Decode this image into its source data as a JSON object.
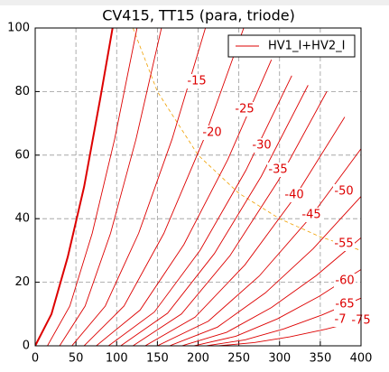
{
  "chart_data": {
    "type": "line",
    "title": "CV415,  TT15  (para, triode)",
    "legend": {
      "label": "HV1_I+HV2_I",
      "loc": "upper right",
      "color": "#dd0000"
    },
    "xlim": [
      0,
      400
    ],
    "ylim": [
      0,
      100
    ],
    "xticks": [
      0,
      50,
      100,
      150,
      200,
      250,
      300,
      350,
      400
    ],
    "yticks": [
      0,
      20,
      40,
      60,
      80,
      100
    ],
    "grid": true,
    "series": [
      {
        "color": "#dd0000",
        "bold": true,
        "x": [
          0,
          20,
          40,
          60,
          80,
          95
        ],
        "values": [
          0,
          10,
          28,
          50,
          78,
          100
        ]
      },
      {
        "color": "#dd0000",
        "x": [
          15,
          42.5,
          70,
          97.5,
          125
        ],
        "values": [
          0,
          12.5,
          35.4,
          65,
          100
        ]
      },
      {
        "color": "#dd0000",
        "x": [
          30,
          61.25,
          92.5,
          123.75,
          155
        ],
        "values": [
          0,
          12.5,
          35.4,
          65,
          100
        ]
      },
      {
        "color": "#dd0000",
        "label": "-15",
        "x": [
          45,
          86,
          127,
          168,
          209
        ],
        "values": [
          0,
          12.5,
          35.4,
          65,
          100
        ]
      },
      {
        "color": "#dd0000",
        "label": "-20",
        "x": [
          60,
          109,
          158,
          207,
          256
        ],
        "values": [
          0,
          12.5,
          35.4,
          65,
          100
        ]
      },
      {
        "color": "#dd0000",
        "label": "-25",
        "x": [
          75,
          128.75,
          182.5,
          236.25,
          290
        ],
        "values": [
          0,
          11.25,
          31.86,
          58.5,
          90
        ]
      },
      {
        "color": "#dd0000",
        "label": "-30",
        "x": [
          90,
          146.25,
          202.5,
          258.75,
          315
        ],
        "values": [
          0,
          10.63,
          30.09,
          55.25,
          85
        ]
      },
      {
        "color": "#dd0000",
        "label": "-35",
        "x": [
          105,
          162.5,
          220,
          277.5,
          335
        ],
        "values": [
          0,
          10.25,
          29.03,
          53.3,
          82
        ]
      },
      {
        "color": "#dd0000",
        "label": "-40",
        "x": [
          120,
          179.5,
          239,
          298.5,
          358
        ],
        "values": [
          0,
          10,
          28.32,
          52,
          80
        ]
      },
      {
        "color": "#dd0000",
        "label": "-45",
        "x": [
          135,
          196.25,
          257.5,
          318.75,
          380
        ],
        "values": [
          0,
          9,
          25.49,
          46.8,
          72
        ]
      },
      {
        "color": "#dd0000",
        "label": "-50",
        "x": [
          150,
          212.5,
          275,
          337.5,
          400
        ],
        "values": [
          0,
          7.75,
          21.95,
          40.3,
          62
        ]
      },
      {
        "color": "#dd0000",
        "label": "-55",
        "x": [
          165,
          223.75,
          282.5,
          341.25,
          400
        ],
        "values": [
          0,
          5.88,
          16.64,
          30.55,
          47
        ]
      },
      {
        "color": "#dd0000",
        "label": "-60",
        "x": [
          180,
          235,
          290,
          345,
          400
        ],
        "values": [
          0,
          4.25,
          12.04,
          22.1,
          34
        ]
      },
      {
        "color": "#dd0000",
        "label": "-65",
        "x": [
          195,
          246.25,
          297.5,
          348.75,
          400
        ],
        "values": [
          0,
          3,
          8.5,
          15.6,
          24
        ]
      },
      {
        "color": "#dd0000",
        "label": "-7",
        "x": [
          210,
          257.5,
          305,
          352.5,
          400
        ],
        "values": [
          0,
          1.88,
          5.31,
          9.75,
          15
        ]
      },
      {
        "color": "#dd0000",
        "label": "-75",
        "x": [
          225,
          268.75,
          312.5,
          356.25,
          400
        ],
        "values": [
          0,
          1,
          2.83,
          5.2,
          8
        ]
      }
    ],
    "limit_curve": {
      "color": "#f0a000",
      "x": [
        120,
        150,
        200,
        250,
        300,
        350,
        400
      ],
      "values": [
        100,
        80,
        60,
        48,
        40,
        34.3,
        30
      ]
    }
  }
}
